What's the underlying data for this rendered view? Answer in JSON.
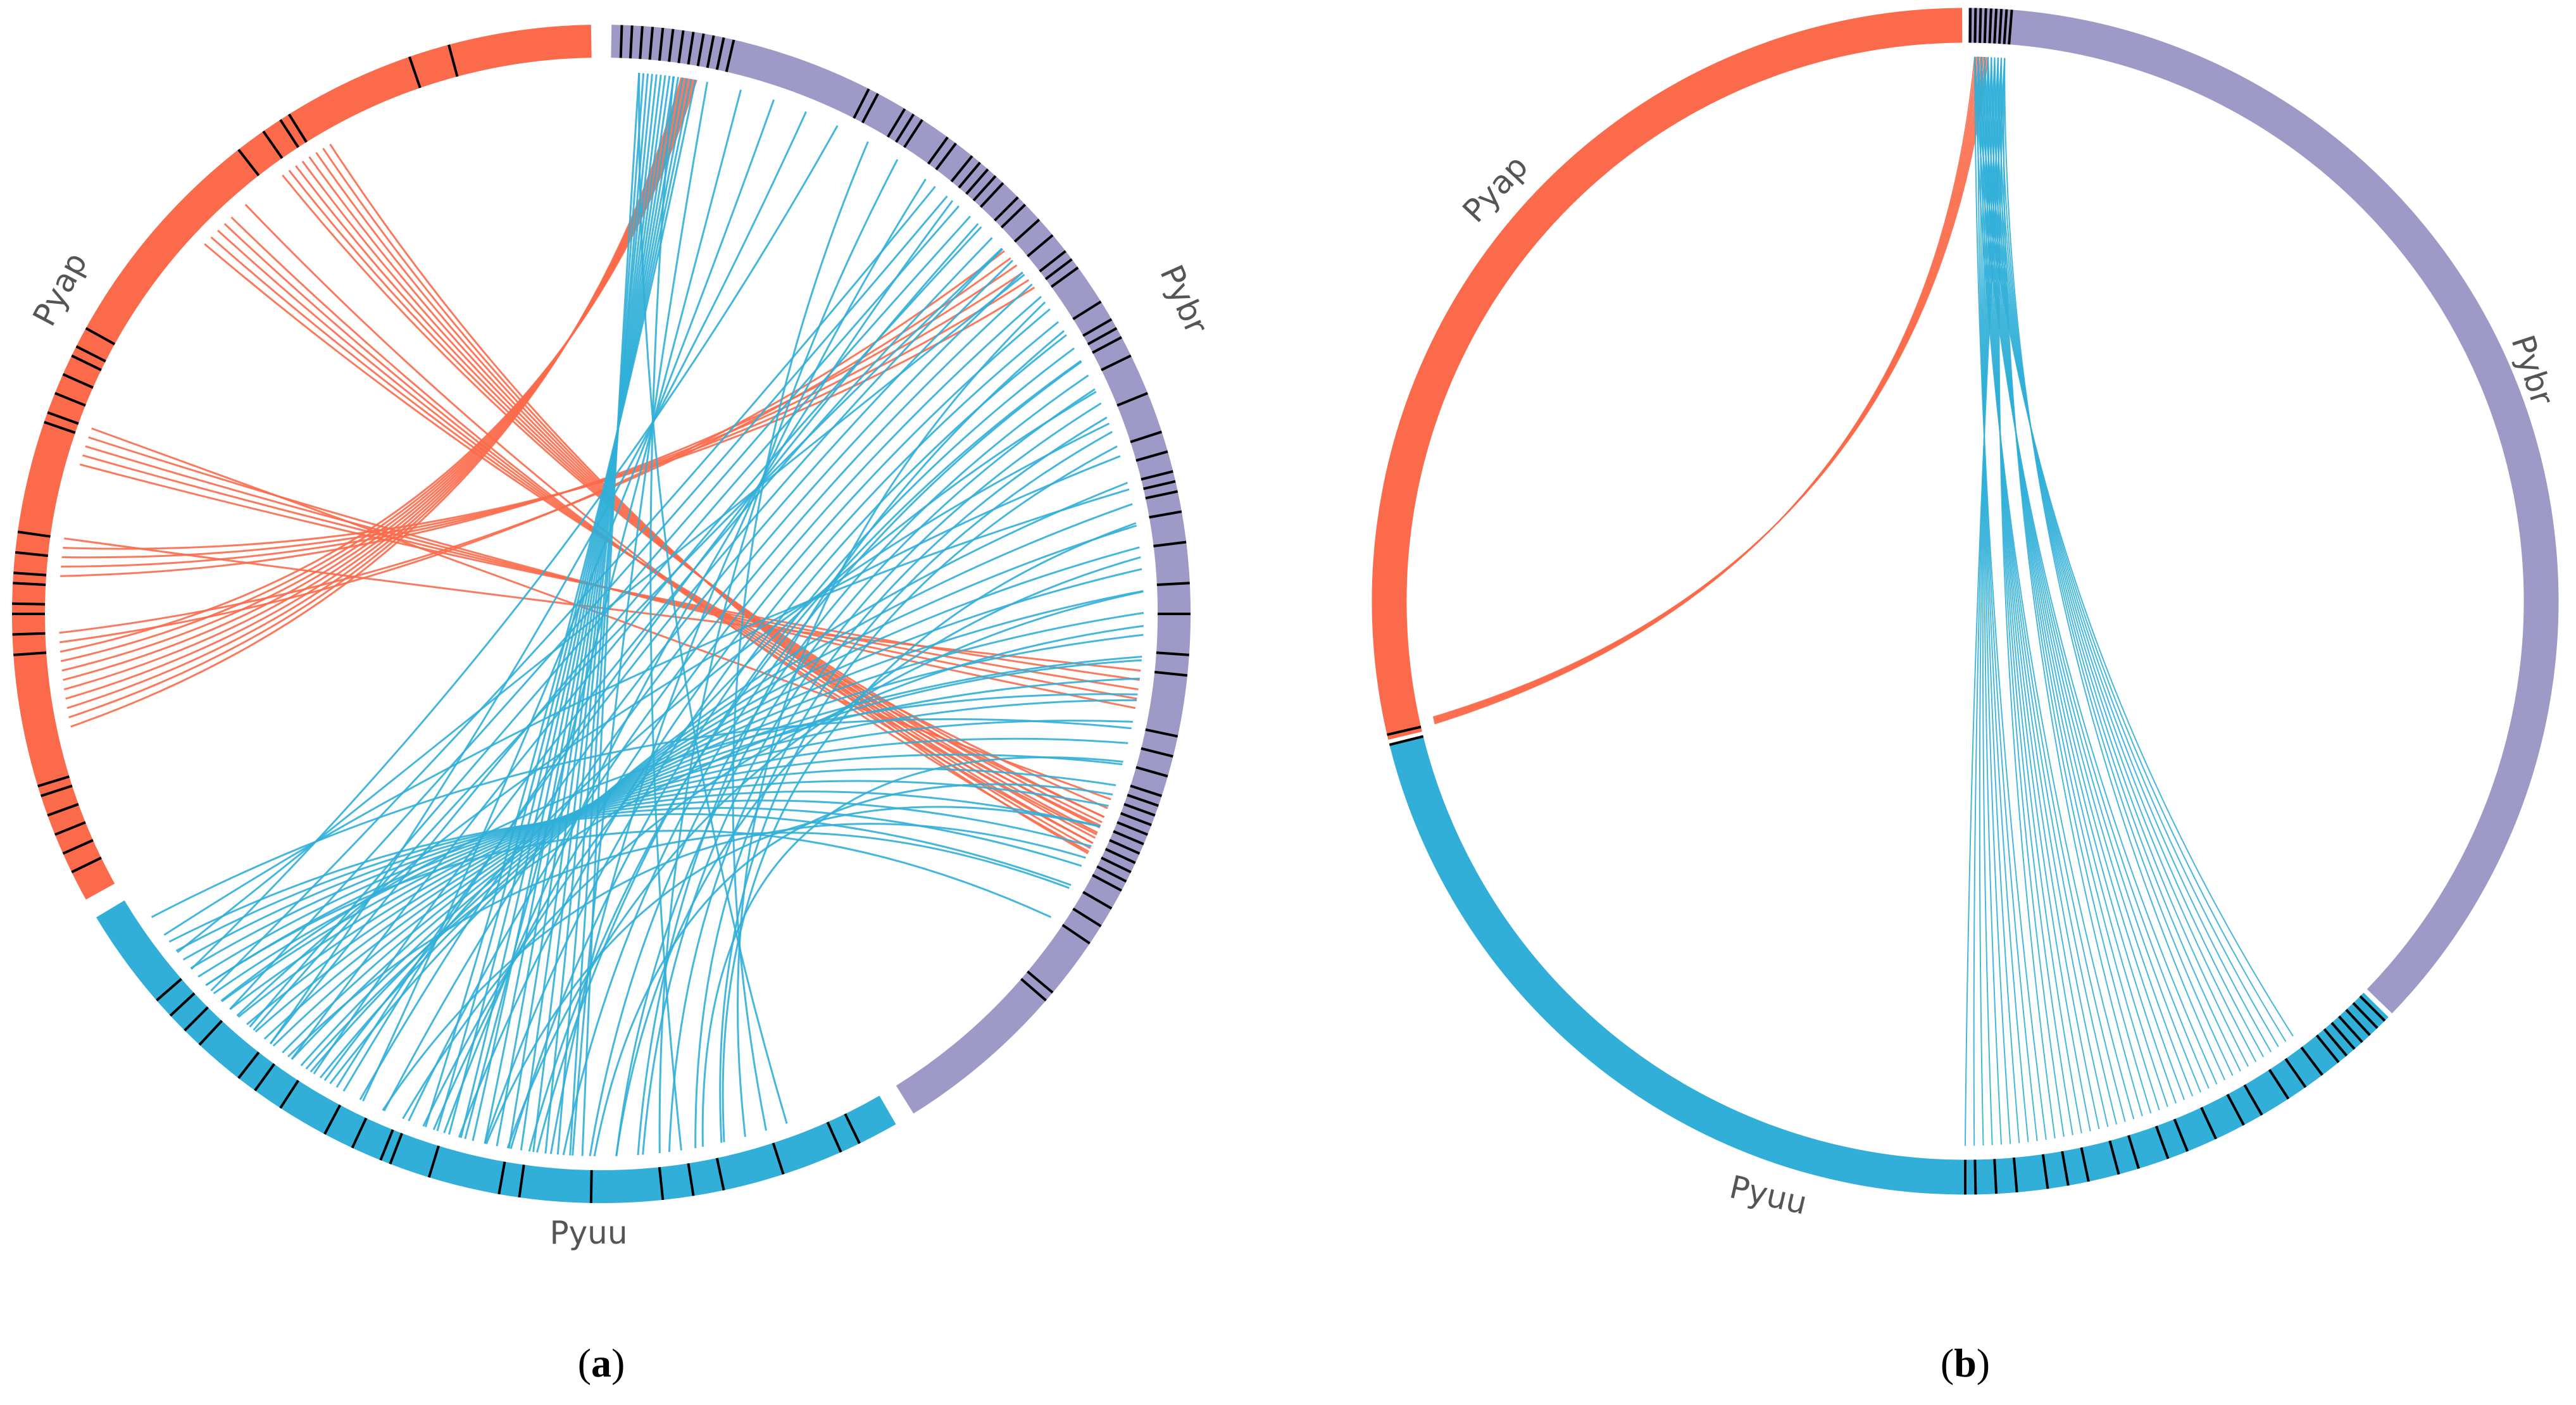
{
  "panels": [
    {
      "id": "a",
      "caption_open": "(",
      "caption_letter": "a",
      "caption_close": ")",
      "segments": [
        {
          "name": "Pyap",
          "color": "#fb6a4a"
        },
        {
          "name": "Pybr",
          "color": "#9e9ac8"
        },
        {
          "name": "Pyuu",
          "color": "#31afd8"
        }
      ]
    },
    {
      "id": "b",
      "caption_open": "(",
      "caption_letter": "b",
      "caption_close": ")",
      "segments": [
        {
          "name": "Pyap",
          "color": "#fb6a4a"
        },
        {
          "name": "Pybr",
          "color": "#9e9ac8"
        },
        {
          "name": "Pyuu",
          "color": "#31afd8"
        }
      ]
    }
  ],
  "colors": {
    "pyap": "#fb6a4a",
    "pybr": "#9e9ac8",
    "pyuu": "#31afd8",
    "marker": "#000000"
  }
}
